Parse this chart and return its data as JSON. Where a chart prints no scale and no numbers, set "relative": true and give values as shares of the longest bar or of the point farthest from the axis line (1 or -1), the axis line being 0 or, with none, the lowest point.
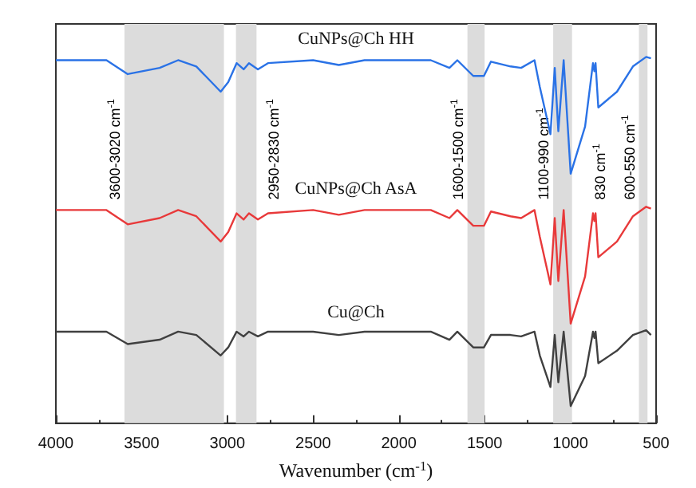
{
  "chart_data": {
    "type": "line",
    "xlabel": "Wavenumber (cm$^{-1}$)",
    "relative": true,
    "tick_labels": "x",
    "marker": "none",
    "line_style": "solid",
    "xlim": [
      4000,
      500
    ],
    "xticks": [
      4000,
      3500,
      3000,
      2500,
      2000,
      1500,
      1000,
      500
    ],
    "x": [
      4000,
      3705,
      3581,
      3395,
      3287,
      3181,
      3039,
      2995,
      2946,
      2905,
      2874,
      2822,
      2763,
      2500,
      2350,
      2200,
      1814,
      1705,
      1659,
      1566,
      1504,
      1463,
      1349,
      1287,
      1209,
      1178,
      1116,
      1091,
      1070,
      1039,
      998,
      914,
      868,
      860,
      853,
      837,
      728,
      635,
      558,
      530
    ],
    "series": [
      {
        "name": "CuNPs@Ch HH",
        "color": "#2a72e6",
        "values": [
          0.991,
          0.991,
          0.953,
          0.97,
          0.991,
          0.974,
          0.905,
          0.931,
          0.983,
          0.966,
          0.983,
          0.966,
          0.983,
          0.991,
          0.978,
          0.991,
          0.991,
          0.97,
          0.991,
          0.948,
          0.948,
          0.987,
          0.974,
          0.97,
          0.991,
          0.918,
          0.789,
          0.97,
          0.797,
          0.991,
          0.681,
          0.81,
          0.983,
          0.961,
          0.983,
          0.862,
          0.905,
          0.974,
          1.0,
          0.996
        ]
      },
      {
        "name": "CuNPs@Ch AsA",
        "color": "#e8393a",
        "values": [
          0.582,
          0.582,
          0.543,
          0.56,
          0.582,
          0.565,
          0.496,
          0.522,
          0.573,
          0.556,
          0.573,
          0.556,
          0.573,
          0.582,
          0.569,
          0.582,
          0.582,
          0.56,
          0.582,
          0.539,
          0.539,
          0.578,
          0.565,
          0.56,
          0.582,
          0.509,
          0.379,
          0.56,
          0.388,
          0.582,
          0.272,
          0.401,
          0.573,
          0.552,
          0.573,
          0.453,
          0.496,
          0.565,
          0.591,
          0.586
        ]
      },
      {
        "name": "Cu@Ch",
        "color": "#404040",
        "values": [
          0.25,
          0.25,
          0.216,
          0.228,
          0.25,
          0.241,
          0.185,
          0.207,
          0.25,
          0.237,
          0.25,
          0.237,
          0.25,
          0.25,
          0.241,
          0.25,
          0.25,
          0.228,
          0.25,
          0.207,
          0.207,
          0.241,
          0.241,
          0.237,
          0.25,
          0.185,
          0.099,
          0.241,
          0.112,
          0.25,
          0.047,
          0.129,
          0.25,
          0.233,
          0.25,
          0.164,
          0.198,
          0.241,
          0.254,
          0.241
        ]
      }
    ],
    "bands": [
      {
        "axis": "x",
        "from": 3600,
        "to": 3020,
        "label": "3600-3020 cm$^{-1}$",
        "color": "#dcdcdc"
      },
      {
        "axis": "x",
        "from": 2950,
        "to": 2830,
        "label": "2950-2830 cm$^{-1}$",
        "color": "#dcdcdc"
      },
      {
        "axis": "x",
        "from": 1600,
        "to": 1500,
        "label": "1600-1500 cm$^{-1}$",
        "color": "#dcdcdc"
      },
      {
        "axis": "x",
        "from": 1100,
        "to": 990,
        "label": "1100-990 cm$^{-1}$",
        "color": "#dcdcdc"
      },
      {
        "axis": "x",
        "from": 600,
        "to": 550,
        "label": "600-550 cm$^{-1}$",
        "color": "#dcdcdc"
      }
    ],
    "annotations": [
      "830 cm$^{-1}$"
    ]
  }
}
